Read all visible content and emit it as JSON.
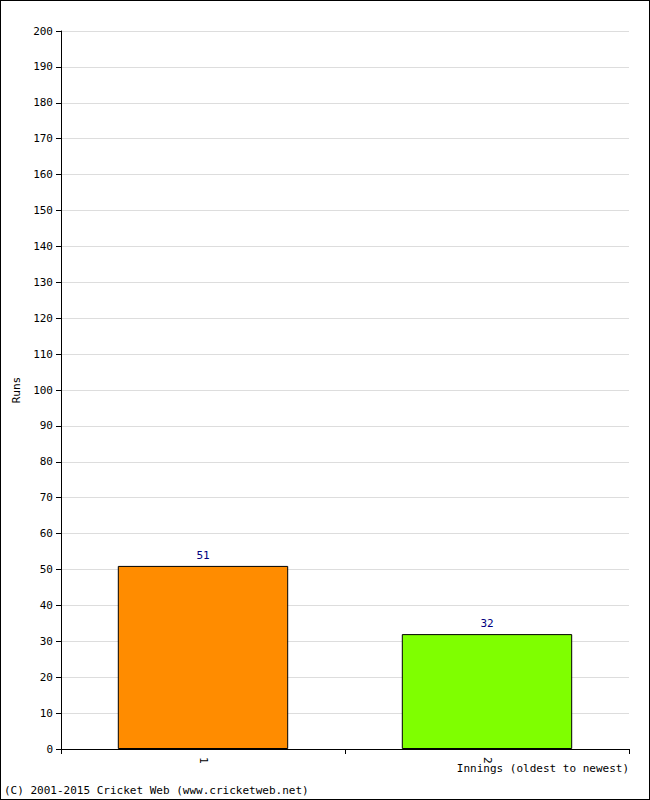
{
  "chart_data": {
    "type": "bar",
    "categories": [
      "1",
      "2"
    ],
    "values": [
      51,
      32
    ],
    "colors": [
      "#ff8c00",
      "#7fff00"
    ],
    "ylim": [
      0,
      200
    ],
    "yticks": [
      0,
      10,
      20,
      30,
      40,
      50,
      60,
      70,
      80,
      90,
      100,
      110,
      120,
      130,
      140,
      150,
      160,
      170,
      180,
      190,
      200
    ],
    "grid": true,
    "data_labels": true,
    "x_label": "Innings (oldest to newest)",
    "y_label": "Runs",
    "annotations": [
      "(C) 2001-2015 Cricket Web (www.cricketweb.net)"
    ]
  }
}
